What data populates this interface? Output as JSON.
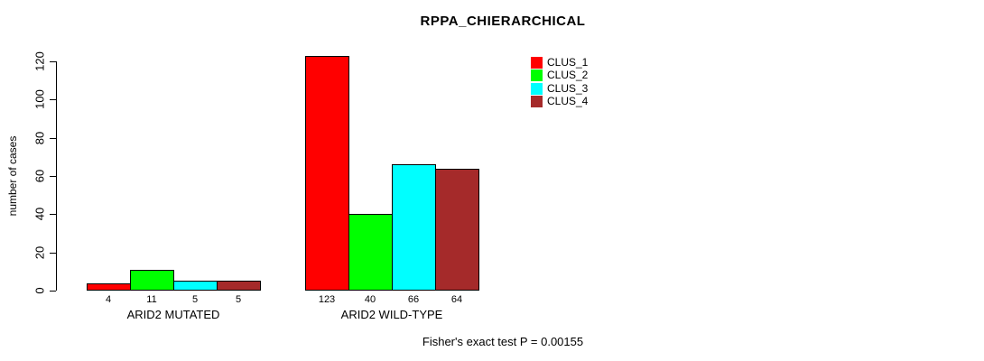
{
  "chart_data": {
    "type": "bar",
    "title": "RPPA_CHIERARCHICAL",
    "xlabel": "",
    "ylabel": "number of cases",
    "categories": [
      "ARID2 MUTATED",
      "ARID2 WILD-TYPE"
    ],
    "series": [
      {
        "name": "CLUS_1",
        "color": "#FF0000",
        "values": [
          4,
          123
        ]
      },
      {
        "name": "CLUS_2",
        "color": "#00FF00",
        "values": [
          11,
          40
        ]
      },
      {
        "name": "CLUS_3",
        "color": "#00FFFF",
        "values": [
          5,
          66
        ]
      },
      {
        "name": "CLUS_4",
        "color": "#A52A2A",
        "values": [
          5,
          64
        ]
      }
    ],
    "yticks": [
      0,
      20,
      40,
      60,
      80,
      100,
      120
    ],
    "ylim": [
      0,
      120
    ],
    "bar_value_labels": true,
    "grid": false,
    "legend_position": "top-right",
    "annotation": "Fisher's exact test P = 0.00155"
  },
  "colors": {
    "axis": "#000000",
    "bar_border": "#000000",
    "background": "#FFFFFF"
  }
}
